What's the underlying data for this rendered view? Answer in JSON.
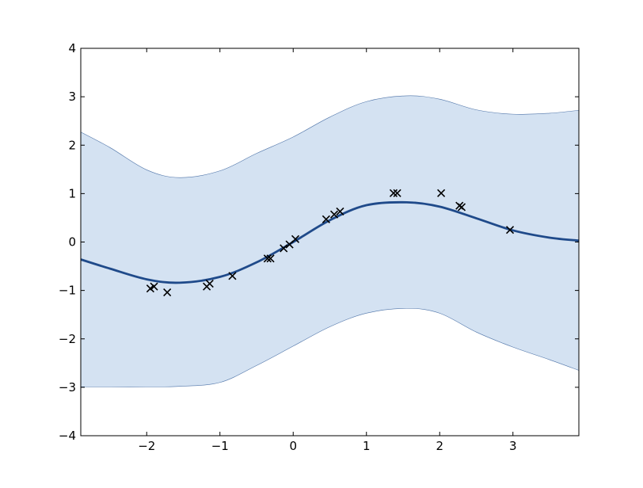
{
  "chart_data": {
    "type": "line",
    "title": "",
    "xlabel": "",
    "ylabel": "",
    "xlim": [
      -2.9,
      3.9
    ],
    "ylim": [
      -4,
      4
    ],
    "grid": false,
    "x_ticks": [
      -2,
      -1,
      0,
      1,
      2,
      3
    ],
    "x_tick_labels": [
      "−2",
      "−1",
      "0",
      "1",
      "2",
      "3"
    ],
    "y_ticks": [
      -4,
      -3,
      -2,
      -1,
      0,
      1,
      2,
      3,
      4
    ],
    "y_tick_labels": [
      "−4",
      "−3",
      "−2",
      "−1",
      "0",
      "1",
      "2",
      "3",
      "4"
    ],
    "series": [
      {
        "kind": "mean-line",
        "color": "#1f4a8a",
        "x": [
          -2.9,
          -2.5,
          -2.0,
          -1.55,
          -1.0,
          -0.5,
          0.0,
          0.5,
          1.0,
          1.55,
          2.0,
          2.5,
          3.0,
          3.5,
          3.9
        ],
        "y": [
          -0.36,
          -0.55,
          -0.77,
          -0.84,
          -0.72,
          -0.42,
          0.0,
          0.45,
          0.76,
          0.82,
          0.73,
          0.49,
          0.24,
          0.09,
          0.03
        ]
      },
      {
        "kind": "confidence-band",
        "color": "#d4e2f2",
        "edge_color": "#4f74a8",
        "x": [
          -2.9,
          -2.5,
          -2.0,
          -1.55,
          -1.0,
          -0.5,
          0.0,
          0.5,
          1.0,
          1.55,
          2.0,
          2.5,
          3.0,
          3.5,
          3.9
        ],
        "upper": [
          2.27,
          1.95,
          1.49,
          1.33,
          1.47,
          1.83,
          2.17,
          2.58,
          2.9,
          3.02,
          2.95,
          2.73,
          2.64,
          2.66,
          2.72
        ],
        "lower": [
          -2.99,
          -2.99,
          -2.99,
          -2.98,
          -2.9,
          -2.55,
          -2.15,
          -1.75,
          -1.47,
          -1.37,
          -1.47,
          -1.86,
          -2.17,
          -2.43,
          -2.65
        ]
      },
      {
        "kind": "observations",
        "marker": "x",
        "color": "#000000",
        "x": [
          -1.95,
          -1.9,
          -1.72,
          -1.18,
          -1.14,
          -0.83,
          -0.35,
          -0.31,
          -0.13,
          -0.05,
          0.03,
          0.45,
          0.56,
          0.64,
          1.37,
          1.42,
          2.02,
          2.27,
          2.3,
          2.96
        ],
        "y": [
          -0.96,
          -0.92,
          -1.04,
          -0.92,
          -0.86,
          -0.7,
          -0.34,
          -0.34,
          -0.13,
          -0.05,
          0.06,
          0.47,
          0.57,
          0.63,
          1.01,
          1.01,
          1.01,
          0.75,
          0.72,
          0.25
        ]
      }
    ]
  }
}
